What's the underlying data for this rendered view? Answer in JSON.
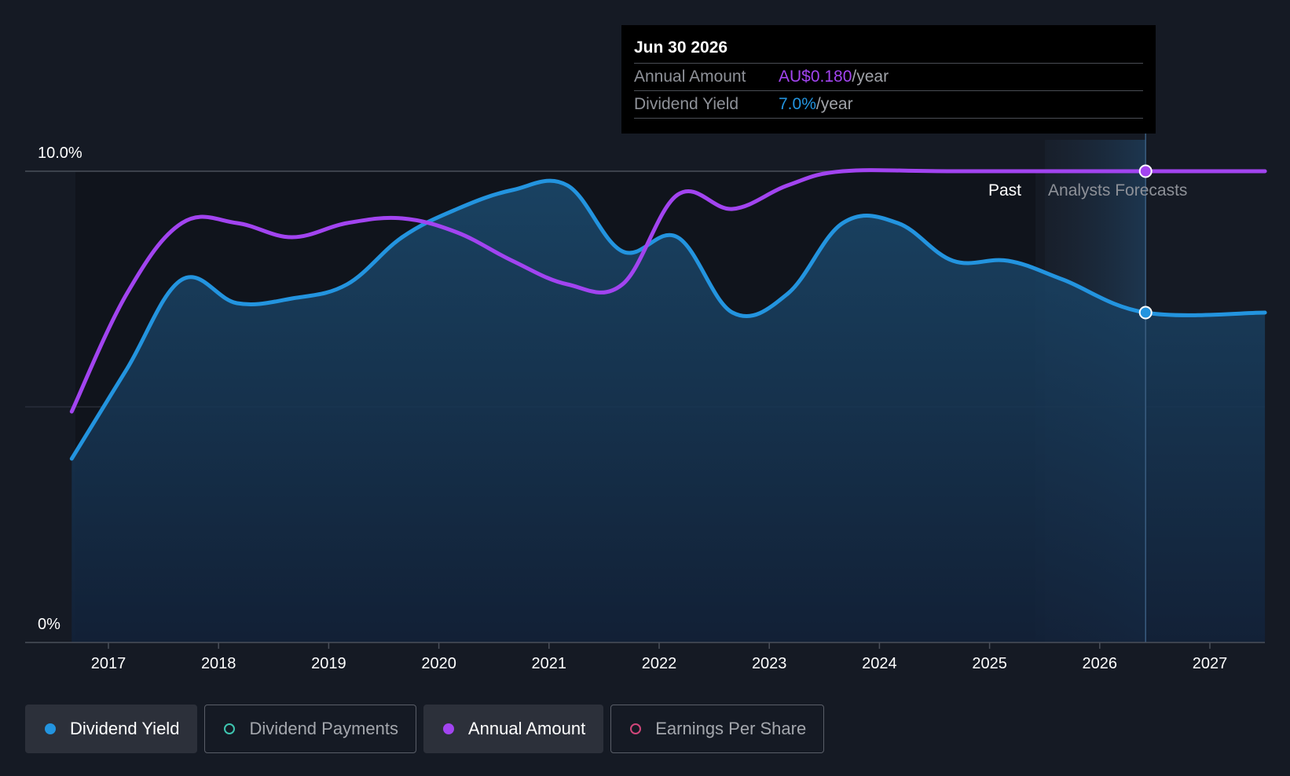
{
  "chart_data": {
    "type": "area",
    "y_tick_labels": [
      "10.0%",
      "0%"
    ],
    "ylim": [
      0,
      10
    ],
    "x_tick_labels": [
      "2017",
      "2018",
      "2019",
      "2020",
      "2021",
      "2022",
      "2023",
      "2024",
      "2025",
      "2026",
      "2027"
    ],
    "xlim": [
      "2016-09",
      "2027-07"
    ],
    "region_labels": {
      "past": "Past",
      "forecast": "Analysts Forecasts"
    },
    "forecast_start": "2025-06",
    "series": [
      {
        "name": "Dividend Yield",
        "color": "#2394df",
        "filled": true,
        "points": [
          [
            "2016-09",
            3.9
          ],
          [
            "2017-03",
            5.8
          ],
          [
            "2017-09",
            7.7
          ],
          [
            "2018-03",
            7.2
          ],
          [
            "2018-09",
            7.3
          ],
          [
            "2019-03",
            7.6
          ],
          [
            "2019-09",
            8.6
          ],
          [
            "2020-03",
            9.2
          ],
          [
            "2020-09",
            9.6
          ],
          [
            "2021-03",
            9.7
          ],
          [
            "2021-09",
            8.3
          ],
          [
            "2022-03",
            8.6
          ],
          [
            "2022-09",
            7.0
          ],
          [
            "2023-03",
            7.4
          ],
          [
            "2023-09",
            8.9
          ],
          [
            "2024-03",
            8.9
          ],
          [
            "2024-09",
            8.1
          ],
          [
            "2025-03",
            8.1
          ],
          [
            "2025-09",
            7.7
          ],
          [
            "2026-06",
            7.0
          ],
          [
            "2027-07",
            7.0
          ]
        ]
      },
      {
        "name": "Annual Amount",
        "color": "#a244f0",
        "filled": false,
        "points": [
          [
            "2016-09",
            4.9
          ],
          [
            "2017-03",
            7.4
          ],
          [
            "2017-09",
            8.9
          ],
          [
            "2018-03",
            8.9
          ],
          [
            "2018-09",
            8.6
          ],
          [
            "2019-03",
            8.9
          ],
          [
            "2019-09",
            9.0
          ],
          [
            "2020-03",
            8.7
          ],
          [
            "2020-09",
            8.1
          ],
          [
            "2021-03",
            7.6
          ],
          [
            "2021-09",
            7.6
          ],
          [
            "2022-03",
            9.5
          ],
          [
            "2022-09",
            9.2
          ],
          [
            "2023-03",
            9.7
          ],
          [
            "2023-09",
            10.0
          ],
          [
            "2024-09",
            10.0
          ],
          [
            "2026-06",
            10.0
          ],
          [
            "2027-07",
            10.0
          ]
        ]
      }
    ],
    "highlight": {
      "date": "2026-06"
    },
    "tooltip": {
      "date": "Jun 30 2026",
      "rows": [
        {
          "label": "Annual Amount",
          "value": "AU$0.180",
          "unit": "/year",
          "color": "#a244f0"
        },
        {
          "label": "Dividend Yield",
          "value": "7.0%",
          "unit": "/year",
          "color": "#2394df"
        }
      ]
    },
    "legend": [
      {
        "label": "Dividend Yield",
        "color": "#2394df",
        "marker": "filled",
        "active": true
      },
      {
        "label": "Dividend Payments",
        "color": "#3ec5b0",
        "marker": "hollow",
        "active": false
      },
      {
        "label": "Annual Amount",
        "color": "#a244f0",
        "marker": "filled",
        "active": true
      },
      {
        "label": "Earnings Per Share",
        "color": "#d0467a",
        "marker": "hollow",
        "active": false
      }
    ]
  }
}
